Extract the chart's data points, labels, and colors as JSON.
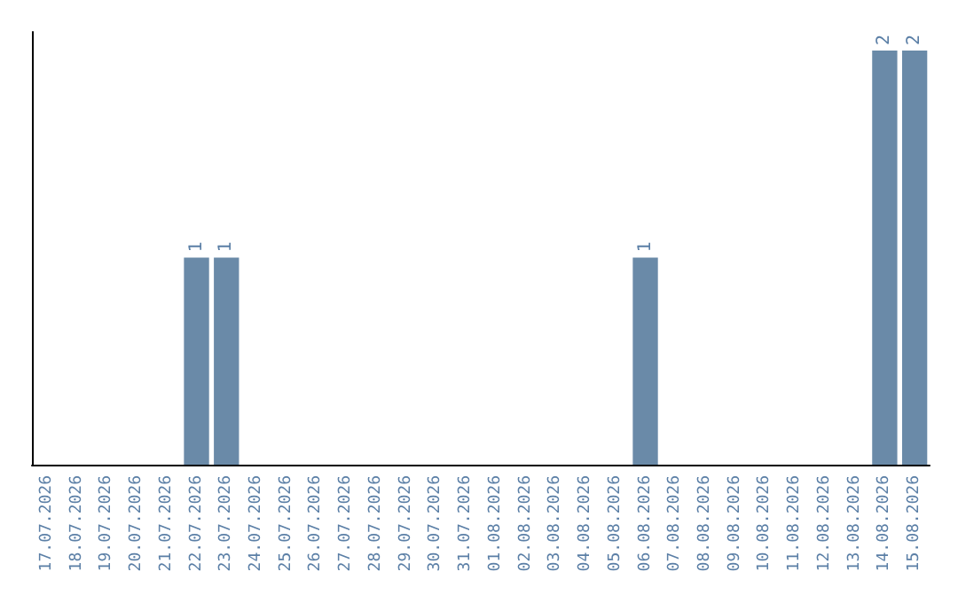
{
  "chart_data": {
    "type": "bar",
    "categories": [
      "17.07.2026",
      "18.07.2026",
      "19.07.2026",
      "20.07.2026",
      "21.07.2026",
      "22.07.2026",
      "23.07.2026",
      "24.07.2026",
      "25.07.2026",
      "26.07.2026",
      "27.07.2026",
      "28.07.2026",
      "29.07.2026",
      "30.07.2026",
      "31.07.2026",
      "01.08.2026",
      "02.08.2026",
      "03.08.2026",
      "04.08.2026",
      "05.08.2026",
      "06.08.2026",
      "07.08.2026",
      "08.08.2026",
      "09.08.2026",
      "10.08.2026",
      "11.08.2026",
      "12.08.2026",
      "13.08.2026",
      "14.08.2026",
      "15.08.2026"
    ],
    "values": [
      0,
      0,
      0,
      0,
      0,
      1,
      1,
      0,
      0,
      0,
      0,
      0,
      0,
      0,
      0,
      0,
      0,
      0,
      0,
      0,
      1,
      0,
      0,
      0,
      0,
      0,
      0,
      0,
      2,
      2
    ],
    "value_labels": [
      null,
      null,
      null,
      null,
      null,
      "1",
      "1",
      null,
      null,
      null,
      null,
      null,
      null,
      null,
      null,
      null,
      null,
      null,
      null,
      null,
      "1",
      null,
      null,
      null,
      null,
      null,
      null,
      null,
      "2",
      "2"
    ],
    "color": "#6a8aa8",
    "tick_labels": "x"
  }
}
